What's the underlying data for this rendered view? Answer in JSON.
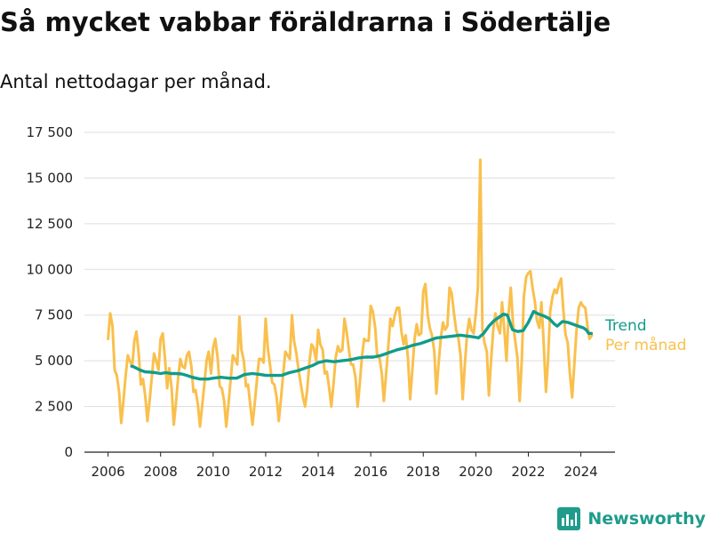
{
  "header": {
    "title": "Så mycket vabbar föräldrarna i Södertälje",
    "subtitle": "Antal nettodagar per månad."
  },
  "brand": {
    "name": "Newsworthy",
    "color": "#1f9c8b"
  },
  "chart_data": {
    "type": "line",
    "ylim": [
      0,
      17500
    ],
    "yticks": [
      0,
      2500,
      5000,
      7500,
      10000,
      12500,
      15000,
      17500
    ],
    "ytick_labels": [
      "0",
      "2 500",
      "5 000",
      "7 500",
      "10 000",
      "12 500",
      "15 000",
      "17 500"
    ],
    "xlim": [
      2005.1,
      2025.3
    ],
    "xticks": [
      2006,
      2008,
      2010,
      2012,
      2014,
      2016,
      2018,
      2020,
      2022,
      2024
    ],
    "xtick_labels": [
      "2006",
      "2008",
      "2010",
      "2012",
      "2014",
      "2016",
      "2018",
      "2020",
      "2022",
      "2024"
    ],
    "grid": true,
    "legend_position": "right",
    "series": [
      {
        "name": "Per månad",
        "color": "#f9c04d",
        "x": [
          2006.0,
          2006.08,
          2006.17,
          2006.25,
          2006.33,
          2006.42,
          2006.5,
          2006.58,
          2006.67,
          2006.75,
          2006.83,
          2006.92,
          2007.0,
          2007.08,
          2007.17,
          2007.25,
          2007.33,
          2007.42,
          2007.5,
          2007.58,
          2007.67,
          2007.75,
          2007.83,
          2007.92,
          2008.0,
          2008.08,
          2008.17,
          2008.25,
          2008.33,
          2008.42,
          2008.5,
          2008.58,
          2008.67,
          2008.75,
          2008.83,
          2008.92,
          2009.0,
          2009.08,
          2009.17,
          2009.25,
          2009.33,
          2009.42,
          2009.5,
          2009.58,
          2009.67,
          2009.75,
          2009.83,
          2009.92,
          2010.0,
          2010.08,
          2010.17,
          2010.25,
          2010.33,
          2010.42,
          2010.5,
          2010.58,
          2010.67,
          2010.75,
          2010.83,
          2010.92,
          2011.0,
          2011.08,
          2011.17,
          2011.25,
          2011.33,
          2011.42,
          2011.5,
          2011.58,
          2011.67,
          2011.75,
          2011.83,
          2011.92,
          2012.0,
          2012.08,
          2012.17,
          2012.25,
          2012.33,
          2012.42,
          2012.5,
          2012.58,
          2012.67,
          2012.75,
          2012.83,
          2012.92,
          2013.0,
          2013.08,
          2013.17,
          2013.25,
          2013.33,
          2013.42,
          2013.5,
          2013.58,
          2013.67,
          2013.75,
          2013.83,
          2013.92,
          2014.0,
          2014.08,
          2014.17,
          2014.25,
          2014.33,
          2014.42,
          2014.5,
          2014.58,
          2014.67,
          2014.75,
          2014.83,
          2014.92,
          2015.0,
          2015.08,
          2015.17,
          2015.25,
          2015.33,
          2015.42,
          2015.5,
          2015.58,
          2015.67,
          2015.75,
          2015.83,
          2015.92,
          2016.0,
          2016.08,
          2016.17,
          2016.25,
          2016.33,
          2016.42,
          2016.5,
          2016.58,
          2016.67,
          2016.75,
          2016.83,
          2016.92,
          2017.0,
          2017.08,
          2017.17,
          2017.25,
          2017.33,
          2017.42,
          2017.5,
          2017.58,
          2017.67,
          2017.75,
          2017.83,
          2017.92,
          2018.0,
          2018.08,
          2018.17,
          2018.25,
          2018.33,
          2018.42,
          2018.5,
          2018.58,
          2018.67,
          2018.75,
          2018.83,
          2018.92,
          2019.0,
          2019.08,
          2019.17,
          2019.25,
          2019.33,
          2019.42,
          2019.5,
          2019.58,
          2019.67,
          2019.75,
          2019.83,
          2019.92,
          2020.0,
          2020.08,
          2020.17,
          2020.25,
          2020.33,
          2020.42,
          2020.5,
          2020.58,
          2020.67,
          2020.75,
          2020.83,
          2020.92,
          2021.0,
          2021.08,
          2021.17,
          2021.25,
          2021.33,
          2021.42,
          2021.5,
          2021.58,
          2021.67,
          2021.75,
          2021.83,
          2021.92,
          2022.0,
          2022.08,
          2022.17,
          2022.25,
          2022.33,
          2022.42,
          2022.5,
          2022.58,
          2022.67,
          2022.75,
          2022.83,
          2022.92,
          2023.0,
          2023.08,
          2023.17,
          2023.25,
          2023.33,
          2023.42,
          2023.5,
          2023.58,
          2023.67,
          2023.75,
          2023.83,
          2023.92,
          2024.0,
          2024.08,
          2024.17,
          2024.25,
          2024.33,
          2024.42
        ],
        "values": [
          6200,
          7600,
          6900,
          4500,
          4200,
          3300,
          1600,
          2700,
          4200,
          5300,
          5000,
          4700,
          6100,
          6600,
          5300,
          3700,
          4000,
          3000,
          1700,
          2800,
          4200,
          5400,
          5000,
          4500,
          6200,
          6500,
          5100,
          3500,
          4600,
          3500,
          1500,
          2600,
          4100,
          5100,
          4700,
          4600,
          5300,
          5500,
          4700,
          3300,
          3400,
          2600,
          1400,
          2500,
          3800,
          5000,
          5500,
          4300,
          5700,
          6200,
          5200,
          3600,
          3500,
          2800,
          1400,
          2600,
          4000,
          5300,
          5100,
          4800,
          7400,
          5600,
          5000,
          3600,
          3700,
          2500,
          1500,
          2600,
          4000,
          5100,
          5100,
          4900,
          7300,
          5700,
          4700,
          3800,
          3700,
          3000,
          1700,
          2900,
          4300,
          5500,
          5300,
          5100,
          7500,
          6100,
          5400,
          4500,
          3800,
          3000,
          2500,
          3400,
          5000,
          5900,
          5700,
          5000,
          6700,
          5900,
          5600,
          4300,
          4400,
          3500,
          2500,
          3700,
          5200,
          5800,
          5500,
          5600,
          7300,
          6600,
          5600,
          4800,
          4800,
          4100,
          2500,
          3700,
          5300,
          6200,
          6100,
          6100,
          8000,
          7700,
          6800,
          5200,
          5200,
          4300,
          2800,
          4200,
          5800,
          7300,
          6900,
          7500,
          7900,
          7900,
          6600,
          5900,
          6400,
          5100,
          2900,
          4400,
          6200,
          7000,
          6400,
          6500,
          8800,
          9200,
          7500,
          6800,
          6400,
          5500,
          3200,
          4800,
          6300,
          7100,
          6700,
          6900,
          9000,
          8700,
          7600,
          6700,
          6300,
          5300,
          2900,
          4700,
          6500,
          7300,
          6700,
          6500,
          7600,
          9000,
          16000,
          6700,
          6000,
          5500,
          3100,
          5000,
          6800,
          7600,
          6900,
          6500,
          8200,
          6800,
          5000,
          7600,
          9000,
          7000,
          6100,
          5200,
          2800,
          5000,
          8500,
          9600,
          9800,
          9900,
          8900,
          8200,
          7200,
          6800,
          8200,
          6100,
          3300,
          5000,
          7700,
          8500,
          8900,
          8700,
          9200,
          9500,
          7800,
          6400,
          6000,
          4300,
          3000,
          4800,
          6600,
          7900,
          8200,
          8000,
          7900,
          6900,
          6200,
          6400
        ]
      },
      {
        "name": "Trend",
        "color": "#109c8c",
        "x": [
          2006.9,
          2007.0,
          2007.2,
          2007.4,
          2007.6,
          2007.8,
          2008.0,
          2008.2,
          2008.4,
          2008.6,
          2008.8,
          2009.0,
          2009.2,
          2009.5,
          2009.8,
          2010.0,
          2010.3,
          2010.6,
          2010.9,
          2011.2,
          2011.5,
          2011.8,
          2012.0,
          2012.3,
          2012.6,
          2012.9,
          2013.2,
          2013.5,
          2013.8,
          2014.0,
          2014.3,
          2014.6,
          2014.9,
          2015.2,
          2015.5,
          2015.8,
          2016.1,
          2016.4,
          2016.7,
          2017.0,
          2017.3,
          2017.6,
          2017.9,
          2018.2,
          2018.5,
          2018.8,
          2019.1,
          2019.4,
          2019.7,
          2019.95,
          2020.1,
          2020.3,
          2020.5,
          2020.7,
          2020.9,
          2021.05,
          2021.2,
          2021.4,
          2021.6,
          2021.8,
          2022.0,
          2022.2,
          2022.4,
          2022.6,
          2022.8,
          2023.0,
          2023.1,
          2023.3,
          2023.5,
          2023.7,
          2023.9,
          2024.1,
          2024.2,
          2024.3,
          2024.4
        ],
        "values": [
          4700,
          4650,
          4500,
          4400,
          4380,
          4350,
          4300,
          4350,
          4300,
          4300,
          4280,
          4200,
          4100,
          4000,
          4000,
          4050,
          4100,
          4050,
          4050,
          4250,
          4300,
          4250,
          4200,
          4200,
          4200,
          4350,
          4450,
          4600,
          4750,
          4900,
          5000,
          4950,
          5000,
          5050,
          5150,
          5200,
          5200,
          5300,
          5450,
          5600,
          5700,
          5850,
          5950,
          6100,
          6250,
          6300,
          6350,
          6400,
          6350,
          6300,
          6250,
          6500,
          6900,
          7200,
          7400,
          7550,
          7500,
          6700,
          6600,
          6650,
          7100,
          7700,
          7550,
          7450,
          7300,
          7000,
          6900,
          7150,
          7100,
          7000,
          6900,
          6800,
          6700,
          6500,
          6500
        ]
      }
    ]
  }
}
